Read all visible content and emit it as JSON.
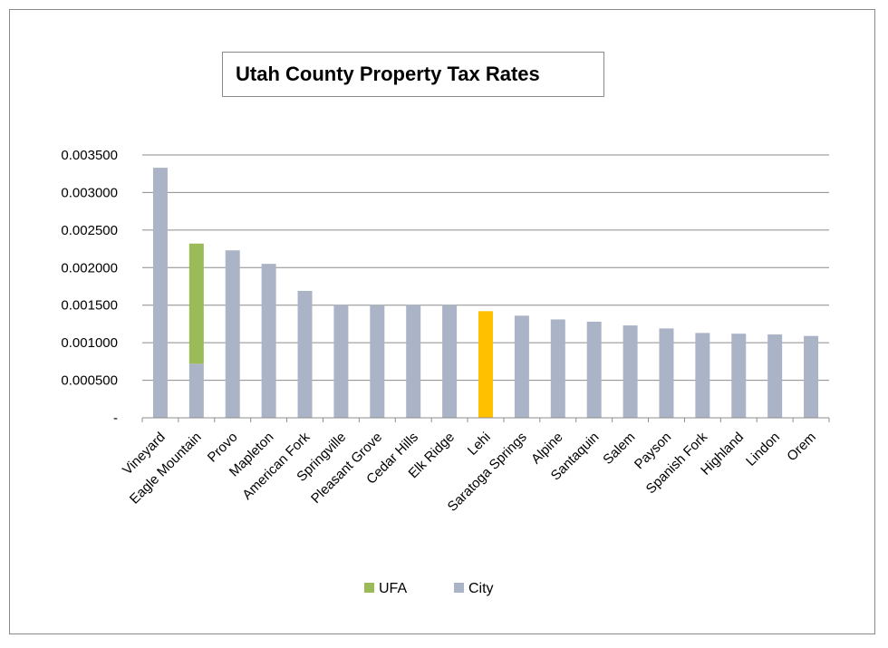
{
  "chart_data": {
    "type": "bar",
    "stacked": true,
    "title": "Utah County Property Tax Rates",
    "xlabel": "",
    "ylabel": "",
    "ylim": [
      0,
      0.0035
    ],
    "y_ticks": [
      0,
      0.0005,
      0.001,
      0.0015,
      0.002,
      0.0025,
      0.003,
      0.0035
    ],
    "y_tick_labels": [
      "-",
      "0.000500",
      "0.001000",
      "0.001500",
      "0.002000",
      "0.002500",
      "0.003000",
      "0.003500"
    ],
    "categories": [
      "Vineyard",
      "Eagle Mountain",
      "Provo",
      "Mapleton",
      "American Fork",
      "Springville",
      "Pleasant Grove",
      "Cedar Hills",
      "Elk Ridge",
      "Lehi",
      "Saratoga Springs",
      "Alpine",
      "Santaquin",
      "Salem",
      "Payson",
      "Spanish Fork",
      "Highland",
      "Lindon",
      "Orem"
    ],
    "series": [
      {
        "name": "City",
        "color": "#aab4c6",
        "values": [
          0.00333,
          0.00072,
          0.00223,
          0.00205,
          0.00169,
          0.0015,
          0.0015,
          0.0015,
          0.0015,
          0,
          0.00136,
          0.00131,
          0.00128,
          0.00123,
          0.00119,
          0.00113,
          0.00112,
          0.00111,
          0.00109
        ]
      },
      {
        "name": "UFA",
        "color": "#9bbb59",
        "values": [
          0,
          0.0016,
          0,
          0,
          0,
          0,
          0,
          0,
          0,
          0.00142,
          0,
          0,
          0,
          0,
          0,
          0,
          0,
          0,
          0
        ]
      }
    ],
    "highlight": {
      "category": "Lehi",
      "color": "#ffc000"
    },
    "legend": {
      "position": "bottom",
      "items": [
        {
          "name": "UFA",
          "color": "#9bbb59"
        },
        {
          "name": "City",
          "color": "#aab4c6"
        }
      ]
    },
    "grid": true,
    "grid_color": "#8c8c8c"
  }
}
